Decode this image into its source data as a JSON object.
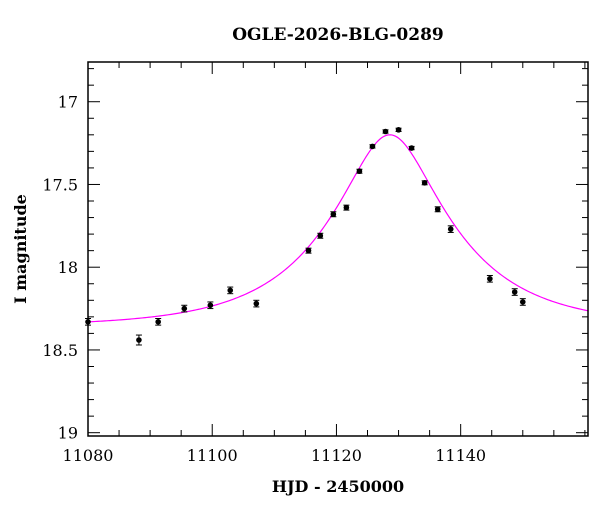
{
  "chart_data": {
    "type": "scatter",
    "title": "OGLE-2026-BLG-0289",
    "xlabel": "HJD - 2450000",
    "ylabel": "I magnitude",
    "xlim": [
      11080,
      11160.5
    ],
    "ylim": [
      19.02,
      16.76
    ],
    "y_inverted": true,
    "grid": false,
    "x_ticks": [
      11080,
      11100,
      11120,
      11140
    ],
    "x_tick_labels": [
      "11080",
      "11100",
      "11120",
      "11140"
    ],
    "y_ticks": [
      17,
      17.5,
      18,
      18.5,
      19
    ],
    "y_tick_labels": [
      "17",
      "17.5",
      "18",
      "18.5",
      "19"
    ],
    "x_minor_step": 5,
    "y_minor_step": 0.1,
    "colors": {
      "points": "#000000",
      "model": "#ff00ff"
    },
    "points": [
      {
        "x": 11080.0,
        "y": 18.33,
        "err": 0.02
      },
      {
        "x": 11088.2,
        "y": 18.44,
        "err": 0.03
      },
      {
        "x": 11091.3,
        "y": 18.33,
        "err": 0.02
      },
      {
        "x": 11095.5,
        "y": 18.25,
        "err": 0.02
      },
      {
        "x": 11099.7,
        "y": 18.23,
        "err": 0.02
      },
      {
        "x": 11102.9,
        "y": 18.14,
        "err": 0.02
      },
      {
        "x": 11107.1,
        "y": 18.22,
        "err": 0.02
      },
      {
        "x": 11115.5,
        "y": 17.9,
        "err": 0.015
      },
      {
        "x": 11117.4,
        "y": 17.81,
        "err": 0.015
      },
      {
        "x": 11119.5,
        "y": 17.68,
        "err": 0.015
      },
      {
        "x": 11121.6,
        "y": 17.64,
        "err": 0.015
      },
      {
        "x": 11123.7,
        "y": 17.42,
        "err": 0.012
      },
      {
        "x": 11125.8,
        "y": 17.27,
        "err": 0.01
      },
      {
        "x": 11127.9,
        "y": 17.18,
        "err": 0.01
      },
      {
        "x": 11130.0,
        "y": 17.17,
        "err": 0.01
      },
      {
        "x": 11132.1,
        "y": 17.28,
        "err": 0.01
      },
      {
        "x": 11134.2,
        "y": 17.49,
        "err": 0.012
      },
      {
        "x": 11136.3,
        "y": 17.65,
        "err": 0.015
      },
      {
        "x": 11138.4,
        "y": 17.77,
        "err": 0.02
      },
      {
        "x": 11144.7,
        "y": 18.07,
        "err": 0.02
      },
      {
        "x": 11148.7,
        "y": 18.15,
        "err": 0.02
      },
      {
        "x": 11150.0,
        "y": 18.21,
        "err": 0.02
      }
    ],
    "model": {
      "type": "point-lens",
      "t0": 11128.6,
      "u0": 0.36,
      "tE": 19.0,
      "baseline": 18.36
    }
  }
}
